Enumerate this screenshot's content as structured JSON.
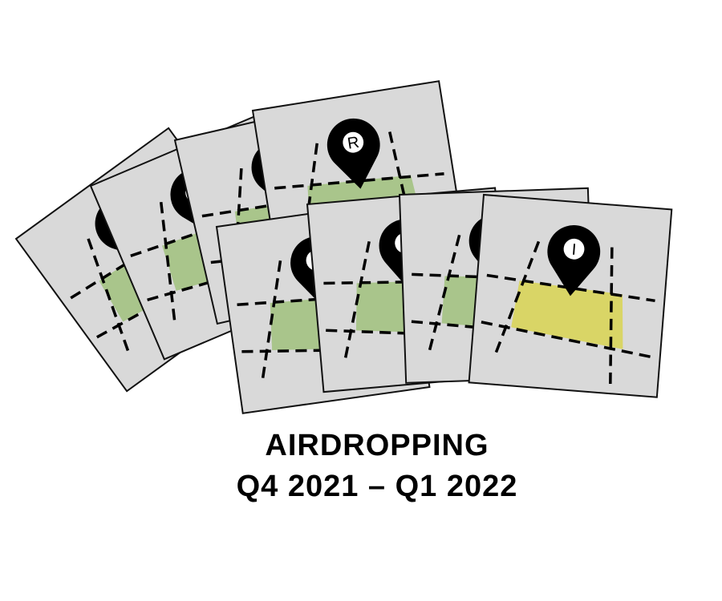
{
  "title": {
    "line1": "AIRDROPPING",
    "line2": "Q4 2021 – Q1 2022"
  },
  "colors": {
    "card_fill": "#d9d9d9",
    "card_stroke": "#111111",
    "region_green": "#a9c58b",
    "region_yellow": "#d9d566",
    "pin": "#000000",
    "text": "#000000"
  },
  "cards": [
    {
      "id": "fan-left-1",
      "highlight": "green",
      "pin_letter": ""
    },
    {
      "id": "fan-left-2",
      "highlight": "green",
      "pin_letter": ""
    },
    {
      "id": "fan-left-3",
      "highlight": "green",
      "pin_letter": ""
    },
    {
      "id": "fan-left-4",
      "highlight": "green",
      "pin_letter": "R"
    },
    {
      "id": "fan-right-1",
      "highlight": "green",
      "pin_letter": ""
    },
    {
      "id": "fan-right-2",
      "highlight": "green",
      "pin_letter": ""
    },
    {
      "id": "fan-right-3",
      "highlight": "green",
      "pin_letter": ""
    },
    {
      "id": "fan-right-4",
      "highlight": "yellow",
      "pin_letter": "I"
    }
  ],
  "icons": {
    "card": "map-card-icon",
    "pin": "location-pin-icon"
  }
}
